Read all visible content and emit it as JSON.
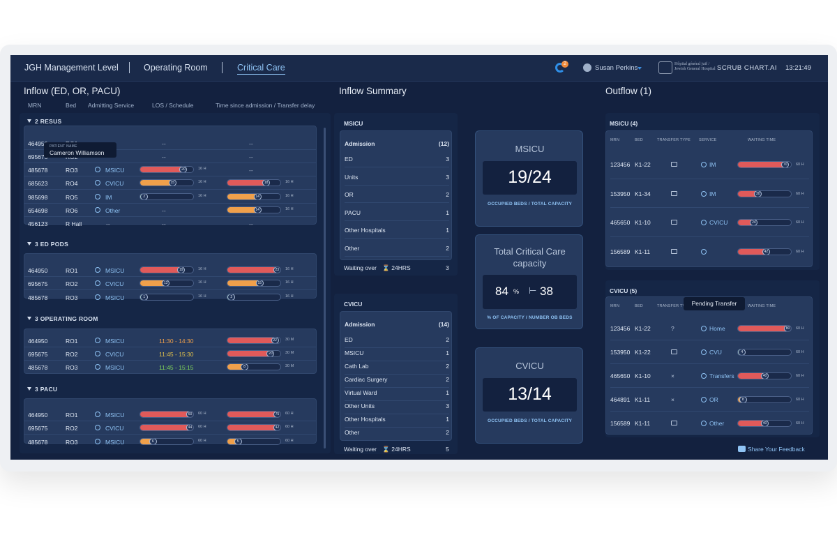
{
  "header": {
    "nav": [
      "JGH Management Level",
      "Operating Room",
      "Critical Care"
    ],
    "notification_count": "2",
    "user_name": "Susan Perkins",
    "hospital_name": "Hôpital général juif / Jewish General Hospital",
    "brand": "SCRUB CHART.AI",
    "time": "13:21:49"
  },
  "inflow": {
    "title": "Inflow (ED, OR, PACU)",
    "columns": [
      "MRN",
      "Bed",
      "Admitting Service",
      "LOS / Schedule",
      "Time since admission / Transfer delay"
    ],
    "tooltip": {
      "label": "PATIENT NAME",
      "name": "Cameron Williamson"
    },
    "groups": [
      {
        "title": "2 RESUS",
        "rows": [
          {
            "mrn": "464950",
            "bed": "RO1",
            "service": "--",
            "los": "--",
            "delay": "--"
          },
          {
            "mrn": "695675",
            "bed": "RO2",
            "service": "",
            "los": "--",
            "delay": "--"
          },
          {
            "mrn": "485678",
            "bed": "RO3",
            "service": "MSICU",
            "los": "20",
            "los_hrs": "16 H",
            "delay": "--"
          },
          {
            "mrn": "685623",
            "bed": "RO4",
            "service": "CVICU",
            "los": "15",
            "los_hrs": "16 H",
            "delay": "18",
            "delay_hrs": "16 H"
          },
          {
            "mrn": "985698",
            "bed": "RO5",
            "service": "IM",
            "los": "2",
            "los_hrs": "16 H",
            "delay": "14",
            "delay_hrs": "16 H"
          },
          {
            "mrn": "654698",
            "bed": "RO6",
            "service": "Other",
            "los": "--",
            "delay": "14",
            "delay_hrs": "16 H"
          },
          {
            "mrn": "456123",
            "bed": "R Hall",
            "service": "--",
            "los": "--",
            "delay": "--"
          }
        ]
      },
      {
        "title": "3 ED PODS",
        "rows": [
          {
            "mrn": "464950",
            "bed": "RO1",
            "service": "MSICU",
            "los": "19",
            "los_hrs": "16 H",
            "delay": "23",
            "delay_hrs": "16 H"
          },
          {
            "mrn": "695675",
            "bed": "RO2",
            "service": "CVICU",
            "los": "12",
            "los_hrs": "16 H",
            "delay": "15",
            "delay_hrs": "16 H"
          },
          {
            "mrn": "485678",
            "bed": "RO3",
            "service": "MSICU",
            "los": "1",
            "los_hrs": "16 H",
            "delay": "2",
            "delay_hrs": "16 H"
          }
        ]
      },
      {
        "title": "3 OPERATING ROOM",
        "rows": [
          {
            "mrn": "464950",
            "bed": "RO1",
            "service": "MSICU",
            "schedule": "11:30 - 14:30",
            "delay": "22",
            "delay_hrs": "30 M"
          },
          {
            "mrn": "695675",
            "bed": "RO2",
            "service": "CVICU",
            "schedule": "11:45 - 15:30",
            "delay": "20",
            "delay_hrs": "30 M"
          },
          {
            "mrn": "485678",
            "bed": "RO3",
            "service": "MSICU",
            "schedule": "11:45 - 15:15",
            "delay": "8",
            "delay_hrs": "30 M"
          }
        ]
      },
      {
        "title": "3 PACU",
        "rows": [
          {
            "mrn": "464950",
            "bed": "RO1",
            "service": "MSICU",
            "los": "60",
            "los_hrs": "60 H",
            "delay": "75",
            "delay_hrs": "60 H"
          },
          {
            "mrn": "695675",
            "bed": "RO2",
            "service": "CVICU",
            "los": "44",
            "los_hrs": "60 H",
            "delay": "42",
            "delay_hrs": "60 H"
          },
          {
            "mrn": "485678",
            "bed": "RO3",
            "service": "MSICU",
            "los": "6",
            "los_hrs": "60 H",
            "delay": "5",
            "delay_hrs": "60 H"
          }
        ]
      }
    ]
  },
  "summary": {
    "title": "Inflow Summary",
    "msicu": {
      "name": "MSICU",
      "head": "Admission",
      "total": "(12)",
      "rows": [
        [
          "ED",
          "3"
        ],
        [
          "Units",
          "3"
        ],
        [
          "OR",
          "2"
        ],
        [
          "PACU",
          "1"
        ],
        [
          "Other Hospitals",
          "1"
        ],
        [
          "Other",
          "2"
        ]
      ],
      "wait_label": "Waiting over",
      "wait_hrs": "24HRS",
      "wait_value": "3"
    },
    "cvicu": {
      "name": "CVICU",
      "head": "Admission",
      "total": "(14)",
      "rows": [
        [
          "ED",
          "2"
        ],
        [
          "MSICU",
          "1"
        ],
        [
          "Cath Lab",
          "2"
        ],
        [
          "Cardiac Surgery",
          "2"
        ],
        [
          "Virtual Ward",
          "1"
        ],
        [
          "Other Units",
          "3"
        ],
        [
          "Other Hospitals",
          "1"
        ],
        [
          "Other",
          "2"
        ]
      ],
      "wait_label": "Waiting over",
      "wait_hrs": "24HRS",
      "wait_value": "5"
    }
  },
  "kpis": {
    "msicu": {
      "title": "MSICU",
      "value": "19/24",
      "label": "OCCUPIED BEDS / TOTAL CAPACITY"
    },
    "total": {
      "title": "Total Critical Care capacity",
      "percent": "84",
      "percent_unit": "%",
      "beds": "38",
      "label": "% OF CAPACITY / NUMBER OB BEDS"
    },
    "cvicu": {
      "title": "CVICU",
      "value": "13/14",
      "label": "OCCUPIED BEDS / TOTAL CAPACITY"
    }
  },
  "outflow": {
    "title": "Outflow",
    "count": "(1)",
    "msicu": {
      "title": "MSICU",
      "count": "(4)",
      "headers": [
        "MRN",
        "BED",
        "TRANSFER TYPE",
        "SERVICE",
        "WAITING TIME"
      ],
      "rows": [
        {
          "mrn": "123456",
          "bed": "K1-22",
          "service": "IM",
          "wait": "70",
          "hrs": "60 H"
        },
        {
          "mrn": "153950",
          "bed": "K1-34",
          "service": "IM",
          "wait": "30",
          "hrs": "60 H"
        },
        {
          "mrn": "465650",
          "bed": "K1-10",
          "service": "CVICU",
          "wait": "24",
          "hrs": "60 H"
        },
        {
          "mrn": "156589",
          "bed": "K1-11",
          "service": "",
          "wait": "42",
          "hrs": "60 H"
        }
      ],
      "pending_tooltip": "Pending Transfer"
    },
    "cvicu": {
      "title": "CVICU",
      "count": "(5)",
      "headers": [
        "MRN",
        "BED",
        "TRANSFER TYPE",
        "DESTINATION",
        "WAITING TIME"
      ],
      "rows": [
        {
          "mrn": "123456",
          "bed": "K1-22",
          "type": "?",
          "service": "Home",
          "wait": "80",
          "hrs": "60 H"
        },
        {
          "mrn": "153950",
          "bed": "K1-22",
          "type": "",
          "service": "CVU",
          "wait": "4",
          "hrs": "60 H"
        },
        {
          "mrn": "465650",
          "bed": "K1-10",
          "type": "×",
          "service": "Transfers",
          "wait": "40",
          "hrs": "60 H"
        },
        {
          "mrn": "464891",
          "bed": "K1-11",
          "type": "×",
          "service": "OR",
          "wait": "8",
          "hrs": "60 H"
        },
        {
          "mrn": "156589",
          "bed": "K1-11",
          "type": "",
          "service": "Other",
          "wait": "40",
          "hrs": "60 H"
        }
      ]
    },
    "feedback": "Share Your Feedback"
  },
  "colors": {
    "red": "#e05a5a",
    "orange": "#f0a04b",
    "green": "#5fd35a",
    "accent": "#8fc3f4"
  }
}
